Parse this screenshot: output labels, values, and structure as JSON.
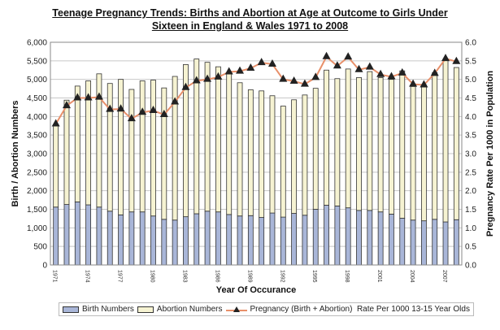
{
  "chart_data": {
    "type": "bar",
    "title": "Teenage Pregnancy Trends: Births and Abortion at Age at Outcome to Girls Under",
    "title_line2": "Sixteen in England & Wales 1971 to 2008",
    "xlabel": "Year Of Occurance",
    "ylabel": "Birth / Abortion Numbers",
    "y2label": "Pregnancy Rate Per 1000 in Population",
    "ylim": [
      0,
      6000
    ],
    "y2lim": [
      0,
      6.0
    ],
    "yticks": [
      "0",
      "500",
      "1,000",
      "1,500",
      "2,000",
      "2,500",
      "3,000",
      "3,500",
      "4,000",
      "4,500",
      "5,000",
      "5,500",
      "6,000"
    ],
    "y2ticks": [
      "0.0",
      "0.5",
      "1.0",
      "1.5",
      "2.0",
      "2.5",
      "3.0",
      "3.5",
      "4.0",
      "4.5",
      "5.0",
      "5.5",
      "6.0"
    ],
    "xtick_labels": [
      "1971",
      "1974",
      "1977",
      "1980",
      "1983",
      "1986",
      "1989",
      "1992",
      "1995",
      "1998",
      "2001",
      "2004",
      "2007"
    ],
    "grid": true,
    "legend_placement": "bottom",
    "stacked": true,
    "x": [
      1971,
      1972,
      1973,
      1974,
      1975,
      1976,
      1977,
      1978,
      1979,
      1980,
      1981,
      1982,
      1983,
      1984,
      1985,
      1986,
      1987,
      1988,
      1989,
      1990,
      1991,
      1992,
      1993,
      1994,
      1995,
      1996,
      1997,
      1998,
      1999,
      2000,
      2001,
      2002,
      2003,
      2004,
      2005,
      2006,
      2007,
      2008
    ],
    "series": [
      {
        "name": "Birth Numbers",
        "type": "bar",
        "axis": "left",
        "color": "#a9b6d8",
        "values": [
          1560,
          1630,
          1700,
          1620,
          1560,
          1450,
          1350,
          1430,
          1430,
          1320,
          1230,
          1210,
          1300,
          1380,
          1450,
          1430,
          1360,
          1320,
          1330,
          1280,
          1400,
          1290,
          1390,
          1340,
          1500,
          1610,
          1590,
          1540,
          1470,
          1470,
          1430,
          1370,
          1260,
          1210,
          1190,
          1230,
          1160,
          1220
        ]
      },
      {
        "name": "Abortion Numbers",
        "type": "bar",
        "axis": "left",
        "color": "#f6f3d2",
        "values": [
          2190,
          2810,
          3120,
          3340,
          3590,
          3440,
          3650,
          3300,
          3530,
          3660,
          3540,
          3870,
          4100,
          4170,
          4010,
          3910,
          3820,
          3590,
          3390,
          3410,
          3160,
          2990,
          3060,
          3240,
          3260,
          3640,
          3430,
          3740,
          3580,
          3740,
          3620,
          3630,
          3970,
          3600,
          3660,
          3950,
          4380,
          4100
        ]
      },
      {
        "name": "Pregnancy (Birth + Abortion)  Rate Per 1000 13-15 Year Olds",
        "type": "line",
        "axis": "right",
        "color": "#e8906a",
        "marker": "triangle",
        "values": [
          3.8,
          4.29,
          4.5,
          4.5,
          4.52,
          4.19,
          4.2,
          3.94,
          4.11,
          4.16,
          4.05,
          4.39,
          4.78,
          4.96,
          5.0,
          5.06,
          5.2,
          5.22,
          5.3,
          5.45,
          5.41,
          5.0,
          4.95,
          4.87,
          5.05,
          5.61,
          5.36,
          5.6,
          5.26,
          5.33,
          5.13,
          5.07,
          5.17,
          4.87,
          4.85,
          5.16,
          5.56,
          5.48
        ]
      }
    ]
  }
}
